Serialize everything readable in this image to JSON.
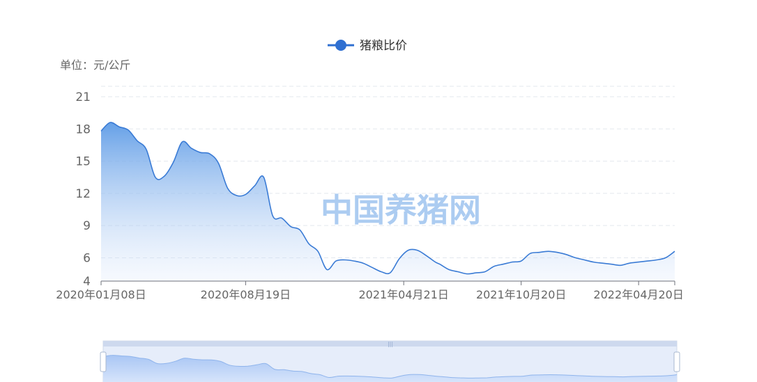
{
  "chart_data": {
    "type": "area",
    "legend": {
      "label": "猪粮比价",
      "position": "top-center"
    },
    "unit_label": "单位：元/公斤",
    "watermark": "中国养猪网",
    "series": [
      {
        "name": "猪粮比价",
        "color": "#3a7bd5",
        "x": [
          "2020-01-08",
          "2020-01-22",
          "2020-02-05",
          "2020-02-19",
          "2020-03-04",
          "2020-03-18",
          "2020-04-01",
          "2020-04-15",
          "2020-04-29",
          "2020-05-13",
          "2020-05-27",
          "2020-06-10",
          "2020-06-24",
          "2020-07-08",
          "2020-07-22",
          "2020-08-05",
          "2020-08-19",
          "2020-09-02",
          "2020-09-16",
          "2020-09-30",
          "2020-10-14",
          "2020-10-28",
          "2020-11-11",
          "2020-11-25",
          "2020-12-09",
          "2020-12-23",
          "2021-01-06",
          "2021-01-20",
          "2021-02-03",
          "2021-02-17",
          "2021-03-03",
          "2021-03-17",
          "2021-03-31",
          "2021-04-14",
          "2021-04-28",
          "2021-05-12",
          "2021-05-26",
          "2021-06-09",
          "2021-06-16",
          "2021-06-30",
          "2021-07-14",
          "2021-07-28",
          "2021-08-11",
          "2021-08-25",
          "2021-09-08",
          "2021-09-22",
          "2021-10-06",
          "2021-10-20",
          "2021-11-03",
          "2021-11-17",
          "2021-12-01",
          "2021-12-15",
          "2021-12-29",
          "2022-01-12",
          "2022-01-26",
          "2022-02-09",
          "2022-02-23",
          "2022-03-09",
          "2022-03-23",
          "2022-04-06",
          "2022-04-20",
          "2022-05-04",
          "2022-05-18",
          "2022-06-01",
          "2022-06-15"
        ],
        "values": [
          17.8,
          18.6,
          18.2,
          17.9,
          16.9,
          16.1,
          13.5,
          13.6,
          14.9,
          16.8,
          16.2,
          15.8,
          15.7,
          14.8,
          12.5,
          11.8,
          11.9,
          12.7,
          13.5,
          9.9,
          9.7,
          8.9,
          8.6,
          7.3,
          6.6,
          4.9,
          5.7,
          5.8,
          5.7,
          5.5,
          5.1,
          4.7,
          4.6,
          5.9,
          6.7,
          6.7,
          6.2,
          5.6,
          5.4,
          4.9,
          4.7,
          4.5,
          4.6,
          4.7,
          5.2,
          5.4,
          5.6,
          5.7,
          6.4,
          6.5,
          6.6,
          6.5,
          6.3,
          6.0,
          5.8,
          5.6,
          5.5,
          5.4,
          5.3,
          5.5,
          5.6,
          5.7,
          5.8,
          6.0,
          6.6
        ]
      }
    ],
    "x_tick_labels": [
      "2020年01月08日",
      "2020年08月19日",
      "2021年04月21日",
      "2021年10月20日",
      "2022年04月20日"
    ],
    "y_ticks": [
      4,
      6,
      9,
      12,
      15,
      18,
      21
    ],
    "ylim": [
      4,
      22
    ],
    "grid": true,
    "datazoom": {
      "visible": true
    }
  }
}
